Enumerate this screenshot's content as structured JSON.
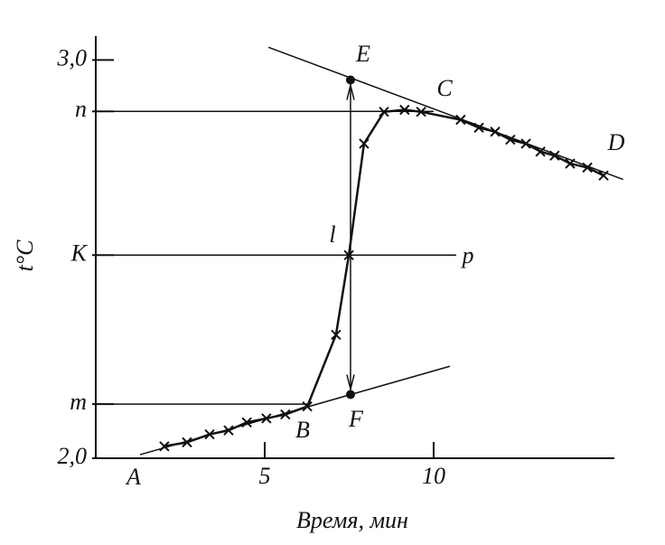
{
  "chart_data": {
    "type": "line",
    "xlabel": "Время, мин",
    "ylabel": "t°C",
    "xlim": [
      0,
      15.35
    ],
    "ylim": [
      2.0,
      3.06
    ],
    "xticks": [
      5,
      10
    ],
    "yticks": [
      {
        "value": 2.0,
        "label": "2,0"
      },
      {
        "value": 2.136,
        "label": "m"
      },
      {
        "value": 2.51,
        "label": "K"
      },
      {
        "value": 2.871,
        "label": "n"
      },
      {
        "value": 3.0,
        "label": "3,0"
      }
    ],
    "series": [
      {
        "color": "#111111",
        "x": [
          2.03,
          2.7,
          3.37,
          3.93,
          4.47,
          5.05,
          5.61,
          6.26,
          7.11,
          7.49,
          7.94,
          8.53,
          9.14,
          9.63,
          10.8,
          11.34,
          11.82,
          12.27,
          12.73,
          13.16,
          13.58,
          14.04,
          14.55,
          15.03
        ],
        "values": [
          2.03,
          2.04,
          2.06,
          2.07,
          2.09,
          2.1,
          2.11,
          2.13,
          2.31,
          2.51,
          2.79,
          2.87,
          2.875,
          2.87,
          2.85,
          2.83,
          2.82,
          2.8,
          2.79,
          2.77,
          2.76,
          2.74,
          2.73,
          2.71
        ]
      }
    ],
    "lines": [
      {
        "x": [
          1.31,
          10.48
        ],
        "y": [
          2.009,
          2.231
        ]
      },
      {
        "x": [
          5.11,
          15.61
        ],
        "y": [
          3.032,
          2.7
        ]
      },
      {
        "x": [
          0,
          10.0
        ],
        "y": [
          2.871,
          2.871
        ]
      },
      {
        "x": [
          0,
          10.67
        ],
        "y": [
          2.51,
          2.51
        ]
      },
      {
        "x": [
          0,
          6.26
        ],
        "y": [
          2.136,
          2.136
        ]
      }
    ],
    "points": {
      "x": [
        7.54,
        7.54
      ],
      "y": [
        2.95,
        2.16
      ]
    },
    "annotations": [
      "A",
      "B",
      "C",
      "D",
      "E",
      "F",
      "l",
      "p"
    ]
  }
}
